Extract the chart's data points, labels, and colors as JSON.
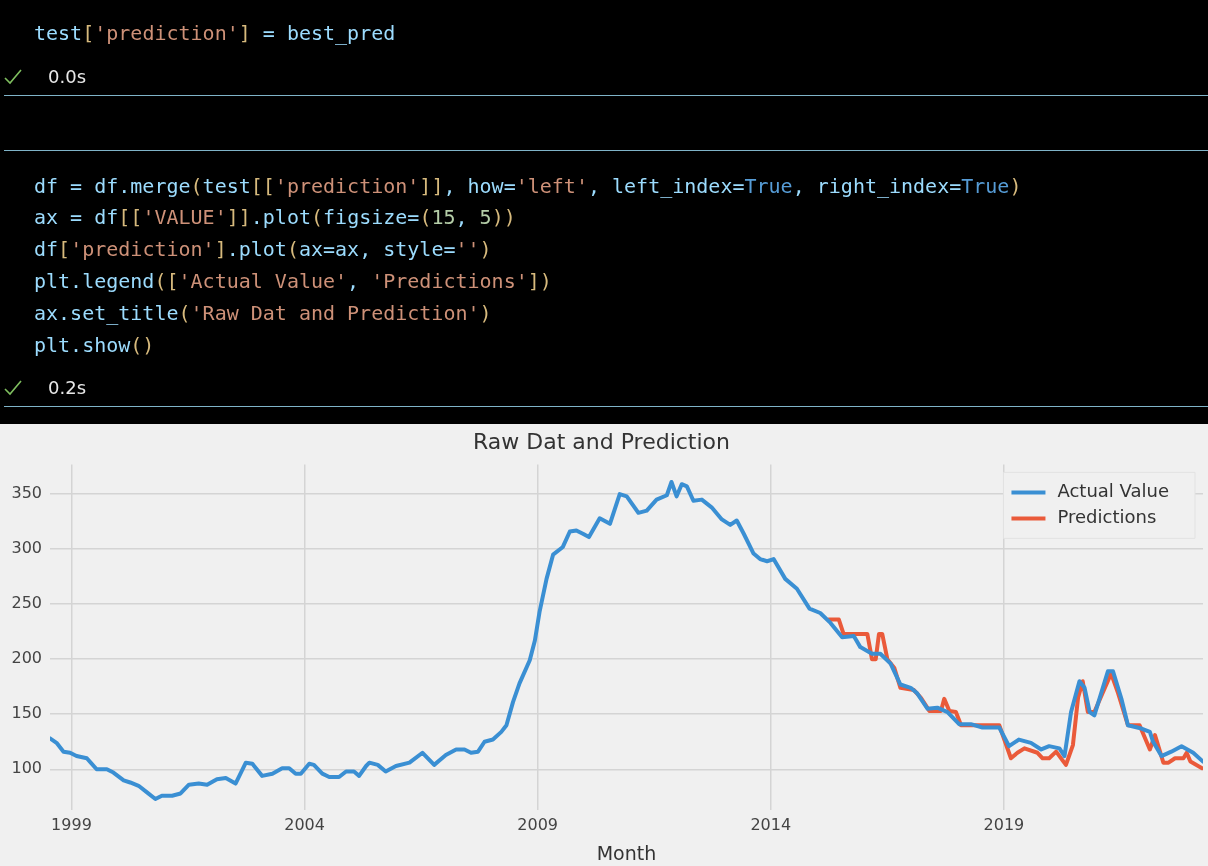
{
  "chart_data": {
    "type": "line",
    "title": "Raw Dat and Prediction",
    "xlabel": "Month",
    "annotations": [
      "test['prediction'] = best_pred",
      "0.0s",
      "df = df.merge(test[['prediction']], how='left', left_index=True, right_index=True)",
      "ax = df[['VALUE']].plot(figsize=(15, 5))",
      "df['prediction'].plot(ax=ax, style='')",
      "plt.legend(['Actual Value', 'Predictions'])",
      "ax.set_title('Raw Dat and Prediction')",
      "plt.show()",
      "0.2s"
    ],
    "xlim": [
      1998.54,
      2023.27
    ],
    "xticks": [
      1999,
      2004,
      2009,
      2014,
      2019
    ],
    "ylim": [
      63,
      377
    ],
    "yticks": [
      100,
      150,
      200,
      250,
      300,
      350
    ],
    "grid": true,
    "legend": "top right",
    "marker": "none",
    "line_style": "solid",
    "series": [
      {
        "name": "Actual Value",
        "color": "#3a8fd3",
        "x": [
          1998.54,
          1998.68,
          1998.83,
          1998.97,
          1999.11,
          1999.33,
          1999.54,
          1999.76,
          1999.9,
          2000.12,
          2000.26,
          2000.44,
          2000.62,
          2000.8,
          2000.94,
          2001.16,
          2001.34,
          2001.52,
          2001.73,
          2001.91,
          2002.12,
          2002.31,
          2002.52,
          2002.74,
          2002.88,
          2003.09,
          2003.31,
          2003.52,
          2003.67,
          2003.81,
          2003.92,
          2004.1,
          2004.2,
          2004.38,
          2004.53,
          2004.74,
          2004.89,
          2005.06,
          2005.17,
          2005.32,
          2005.39,
          2005.57,
          2005.74,
          2005.96,
          2006.25,
          2006.53,
          2006.78,
          2007.03,
          2007.25,
          2007.43,
          2007.57,
          2007.72,
          2007.86,
          2008.04,
          2008.22,
          2008.33,
          2008.47,
          2008.61,
          2008.83,
          2008.94,
          2009.04,
          2009.19,
          2009.33,
          2009.54,
          2009.69,
          2009.83,
          2009.97,
          2010.1,
          2010.33,
          2010.55,
          2010.76,
          2010.91,
          2011.16,
          2011.34,
          2011.55,
          2011.77,
          2011.87,
          2011.98,
          2012.09,
          2012.2,
          2012.34,
          2012.52,
          2012.73,
          2012.95,
          2013.13,
          2013.27,
          2013.42,
          2013.63,
          2013.77,
          2013.92,
          2014.06,
          2014.31,
          2014.56,
          2014.83,
          2015.06,
          2015.28,
          2015.53,
          2015.78,
          2015.92,
          2016.17,
          2016.35,
          2016.57,
          2016.78,
          2017.0,
          2017.14,
          2017.36,
          2017.57,
          2017.79,
          2018.04,
          2018.29,
          2018.54,
          2018.9,
          2019.11,
          2019.32,
          2019.58,
          2019.8,
          2019.97,
          2020.19,
          2020.3,
          2020.44,
          2020.62,
          2020.73,
          2020.84,
          2020.94,
          2021.23,
          2021.34,
          2021.52,
          2021.66,
          2021.95,
          2022.13,
          2022.2,
          2022.38,
          2022.59,
          2022.81,
          2023.06,
          2023.27
        ],
        "values": [
          128,
          124,
          116,
          115,
          112,
          110,
          100,
          100,
          97,
          90,
          88,
          85,
          79,
          73,
          76,
          76,
          78,
          86,
          87,
          86,
          91,
          92,
          87,
          106,
          105,
          94,
          96,
          101,
          101,
          96,
          96,
          105,
          104,
          96,
          93,
          93,
          98,
          98,
          94,
          103,
          106,
          104,
          98,
          103,
          106,
          115,
          104,
          113,
          118,
          118,
          115,
          116,
          125,
          127,
          134,
          140,
          161,
          178,
          199,
          217,
          243,
          273,
          295,
          302,
          316,
          317,
          314,
          311,
          328,
          323,
          350,
          348,
          333,
          335,
          345,
          349,
          361,
          348,
          359,
          357,
          344,
          345,
          338,
          327,
          322,
          326,
          314,
          296,
          291,
          289,
          291,
          273,
          264,
          246,
          242,
          233,
          220,
          221,
          211,
          205,
          205,
          196,
          177,
          174,
          169,
          155,
          156,
          152,
          141,
          141,
          138,
          138,
          121,
          127,
          124,
          118,
          121,
          119,
          112,
          152,
          180,
          174,
          152,
          149,
          189,
          189,
          164,
          140,
          137,
          134,
          125,
          112,
          116,
          121,
          115,
          107
        ]
      },
      {
        "name": "Predictions",
        "color": "#ea5a3a",
        "x": [
          2015.24,
          2015.46,
          2015.56,
          2016.07,
          2016.17,
          2016.25,
          2016.32,
          2016.39,
          2016.5,
          2016.65,
          2016.78,
          2017.07,
          2017.22,
          2017.4,
          2017.65,
          2017.72,
          2017.83,
          2017.97,
          2018.08,
          2018.65,
          2018.9,
          2019.15,
          2019.29,
          2019.44,
          2019.72,
          2019.83,
          2019.97,
          2020.12,
          2020.33,
          2020.48,
          2020.59,
          2020.69,
          2020.8,
          2020.94,
          2021.3,
          2021.45,
          2021.66,
          2021.91,
          2022.13,
          2022.24,
          2022.42,
          2022.53,
          2022.67,
          2022.85,
          2022.92,
          2023.0,
          2023.25
        ],
        "values": [
          236,
          236,
          223,
          223,
          200,
          200,
          223,
          223,
          200,
          192,
          174,
          172,
          165,
          153,
          153,
          164,
          153,
          152,
          140,
          140,
          140,
          110,
          115,
          119,
          115,
          110,
          110,
          116,
          104,
          122,
          165,
          180,
          152,
          152,
          187,
          169,
          140,
          140,
          118,
          131,
          106,
          106,
          110,
          110,
          115,
          107,
          101
        ]
      }
    ]
  }
}
